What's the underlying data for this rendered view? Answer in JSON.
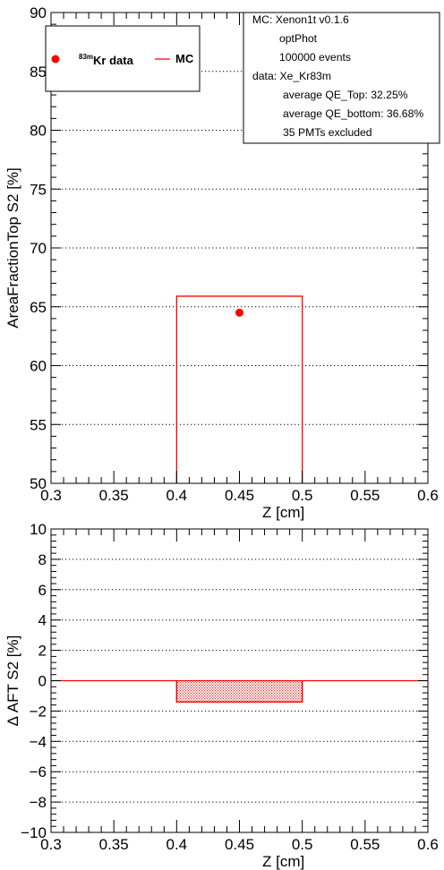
{
  "chart_data": [
    {
      "type": "scatter",
      "xlabel": "Z [cm]",
      "ylabel": "AreaFractionTop S2 [%]",
      "xlim": [
        0.3,
        0.6
      ],
      "ylim": [
        50,
        90
      ],
      "x_ticks": [
        "0.3",
        "0.35",
        "0.4",
        "0.45",
        "0.5",
        "0.55",
        "0.6"
      ],
      "y_ticks": [
        "50",
        "55",
        "60",
        "65",
        "70",
        "75",
        "80",
        "85",
        "90"
      ],
      "grid": "horizontal dotted",
      "legend": {
        "placement": "top-left",
        "entries": [
          {
            "sup": "83m",
            "text": "Kr data",
            "marker": "dot",
            "color": "#ff0000"
          },
          {
            "sup": "",
            "text": "MC",
            "marker": "line",
            "color": "#ff0000"
          }
        ]
      },
      "series": [
        {
          "name": "83mKr data",
          "kind": "points",
          "color": "#ff0000",
          "points": [
            {
              "x": 0.45,
              "y": 64.5
            }
          ]
        },
        {
          "name": "MC",
          "kind": "histogram",
          "color": "#ff0000",
          "bins": [
            {
              "x0": 0.4,
              "x1": 0.5,
              "y": 65.9
            }
          ]
        }
      ],
      "info_box": {
        "placement": "top-right",
        "lines": [
          "MC: Xenon1t v0.1.6",
          "optPhot",
          "100000 events",
          "data: Xe_Kr83m",
          "average QE_Top: 32.25%",
          "average QE_bottom: 36.68%",
          "35 PMTs excluded"
        ]
      }
    },
    {
      "type": "bar",
      "xlabel": "Z [cm]",
      "ylabel": "Δ AFT S2 [%]",
      "xlim": [
        0.3,
        0.6
      ],
      "ylim": [
        -10,
        10
      ],
      "x_ticks": [
        "0.3",
        "0.35",
        "0.4",
        "0.45",
        "0.5",
        "0.55",
        "0.6"
      ],
      "y_ticks": [
        "−10",
        "−8",
        "−6",
        "−4",
        "−2",
        "0",
        "2",
        "4",
        "6",
        "8",
        "10"
      ],
      "grid": "horizontal dotted",
      "series": [
        {
          "name": "",
          "kind": "histogram-filled",
          "color": "#ff0000",
          "bins": [
            {
              "x0": 0.3,
              "x1": 0.4,
              "y": 0
            },
            {
              "x0": 0.4,
              "x1": 0.5,
              "y": -1.4
            },
            {
              "x0": 0.5,
              "x1": 0.6,
              "y": 0
            }
          ]
        }
      ]
    }
  ]
}
